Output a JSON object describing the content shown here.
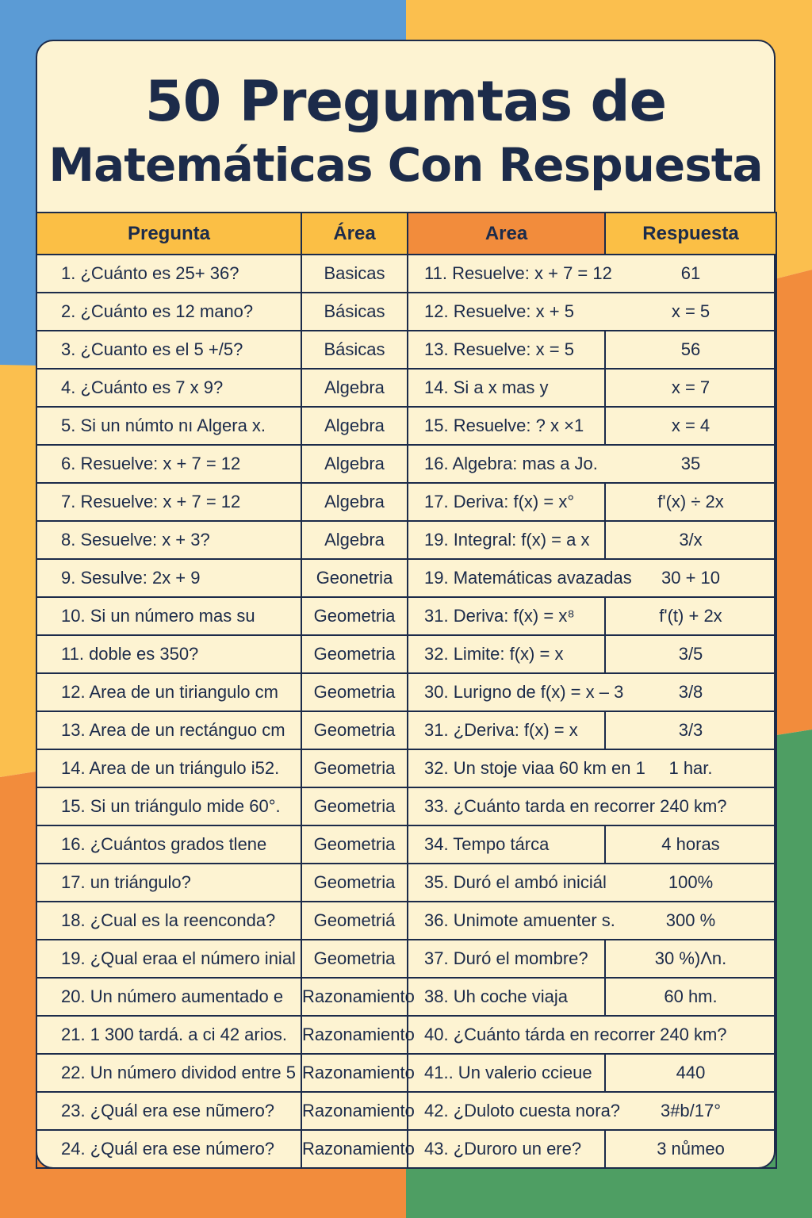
{
  "colors": {
    "blue": "#5b9bd5",
    "yellow": "#fbbf4e",
    "orange": "#f28c3c",
    "green": "#4e9e63",
    "card": "#fdf3d2",
    "ink": "#1c2b4a"
  },
  "title": {
    "line1": "50 Pregumtas de",
    "line2": "Matemáticas Con Respuesta"
  },
  "headers": [
    "Pregunta",
    "Área",
    "Area",
    "Respuesta"
  ],
  "rows": [
    [
      "1. ¿Cuánto es 25+ 36?",
      "Basicas",
      "11. Resuelve: x + 7 = 12",
      "61"
    ],
    [
      "2. ¿Cuánto es 12 mano?",
      "Básicas",
      "12. Resuelve: x + 5",
      "x = 5"
    ],
    [
      "3. ¿Cuanto es el 5 +/5?",
      "Básicas",
      "13. Resuelve: x = 5",
      "56"
    ],
    [
      "4. ¿Cuánto es 7 x 9?",
      "Algebra",
      "14. Si a x mas y",
      "x = 7"
    ],
    [
      "5. Si un númto nı Algera x.",
      "Algebra",
      "15. Resuelve: ? x ×1",
      "x = 4"
    ],
    [
      "6. Resuelve: x + 7 = 12",
      "Algebra",
      "16. Algebra: mas a Jo.",
      "35"
    ],
    [
      "7. Resuelve: x + 7 = 12",
      "Algebra",
      "17. Deriva: f(x) = x°",
      "f'(x) ÷ 2x"
    ],
    [
      "8. Sesuelve: x + 3?",
      "Algebra",
      "19. Integral: f(x) = a x",
      "3/x"
    ],
    [
      "9. Sesulve: 2x + 9",
      "Geonetria",
      "19. Matemáticas avazadas",
      "30 + 10"
    ],
    [
      "10. Si un número mas su",
      "Geometria",
      "31. Deriva: f(x) = x⁸",
      "f'(t) + 2x"
    ],
    [
      "11. doble es 350?",
      "Geometria",
      "32. Limite: f(x) = x",
      "3/5"
    ],
    [
      "12. Area de un tiriangulo cm",
      "Geometria",
      "30. Lurigno de f(x) = x – 3",
      "3/8"
    ],
    [
      "13. Area de un rectánguo cm",
      "Geometria",
      "31. ¿Deriva: f(x) = x",
      "3/3"
    ],
    [
      "14. Area de un triángulo i52.",
      "Geometria",
      "32. Un stoje viaa 60 km  en 1",
      "1 har."
    ],
    [
      "15. Si un triángulo mide 60°.",
      "Geometria",
      "33. ¿Cuánto tarda en recorrer 240 km?",
      ""
    ],
    [
      "16. ¿Cuántos grados tlene",
      "Geometria",
      "34. Tempo tárca",
      "4 horas"
    ],
    [
      "17. un triángulo?",
      "Geometria",
      "35. Duró  el ambó iniciál",
      "100%"
    ],
    [
      "18. ¿Cual es la reenconda?",
      "Geometriá",
      "36. Unimote amuenter s.",
      "300 %"
    ],
    [
      "19. ¿Qual eraa el número inial",
      "Geometria",
      "37. Duró el mombre?",
      "30 %)Λn."
    ],
    [
      "20. Un número aumentado e",
      "Razonamiento",
      "38. Uh coche viaja",
      "60 hm."
    ],
    [
      "21. 1 300 tardá. a ci 42 arios.",
      "Razonamiento",
      "40. ¿Cuánto tárda en recorrer 240 km?",
      ""
    ],
    [
      "22. Un número dividod entre 5",
      "Razonamiento",
      "41.. Un valerio ccieue",
      "440"
    ],
    [
      "23. ¿Quál era ese nũmero?",
      "Razonamiento",
      "42. ¿Duloto cuesta nora?",
      "3#b/17°"
    ],
    [
      "24. ¿Quál era ese número?",
      "Razonamiento",
      "43. ¿Duroro un ere?",
      "3 nůmeo"
    ]
  ]
}
